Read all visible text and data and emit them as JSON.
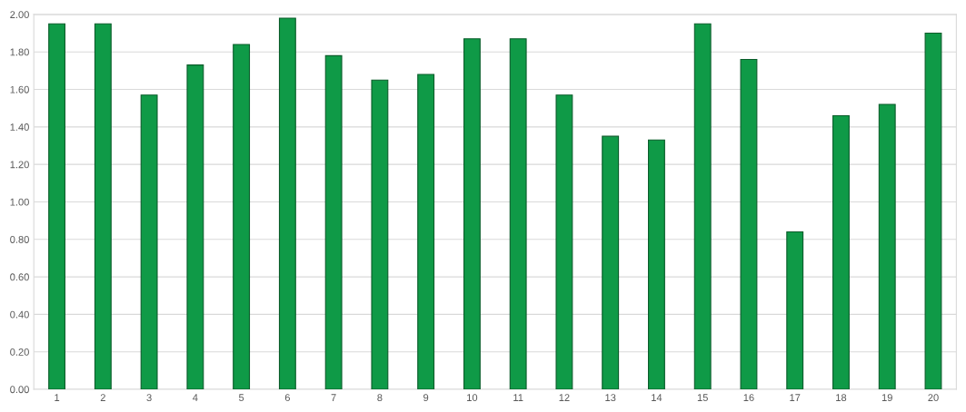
{
  "chart_data": {
    "type": "bar",
    "categories": [
      "1",
      "2",
      "3",
      "4",
      "5",
      "6",
      "7",
      "8",
      "9",
      "10",
      "11",
      "12",
      "13",
      "14",
      "15",
      "16",
      "17",
      "18",
      "19",
      "20"
    ],
    "values": [
      1.95,
      1.95,
      1.57,
      1.73,
      1.84,
      1.98,
      1.78,
      1.65,
      1.68,
      1.87,
      1.87,
      1.57,
      1.35,
      1.33,
      1.95,
      1.76,
      0.84,
      1.46,
      1.52,
      1.9
    ],
    "color": "#0f9a47",
    "ylim": [
      0,
      2
    ],
    "yticks": [
      {
        "value": 0,
        "label": "0.00"
      },
      {
        "value": 0.2,
        "label": "0.20"
      },
      {
        "value": 0.4,
        "label": "0.40"
      },
      {
        "value": 0.6,
        "label": "0.60"
      },
      {
        "value": 0.8,
        "label": "0.80"
      },
      {
        "value": 1.0,
        "label": "1.00"
      },
      {
        "value": 1.2,
        "label": "1.20"
      },
      {
        "value": 1.4,
        "label": "1.40"
      },
      {
        "value": 1.6,
        "label": "1.60"
      },
      {
        "value": 1.8,
        "label": "1.80"
      },
      {
        "value": 2.0,
        "label": "2.00"
      }
    ],
    "grid": "y"
  }
}
